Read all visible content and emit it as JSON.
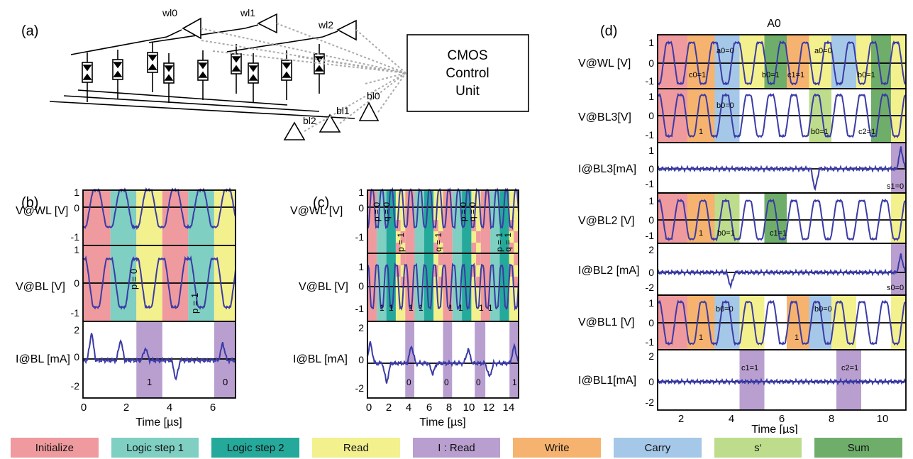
{
  "colors": {
    "initialize": "#ef9a9e",
    "logic1": "#7fcfc2",
    "logic2": "#24a99b",
    "read": "#f3f08e",
    "iread": "#b99fd0",
    "write": "#f6b36f",
    "carry": "#a5c8e8",
    "sprime": "#bddd8c",
    "sum": "#6fae6a",
    "trace": "#3b3ba6"
  },
  "panel_a": {
    "label": "(a)",
    "wordlines": [
      "wl0",
      "wl1",
      "wl2"
    ],
    "bitlines": [
      "bl0",
      "bl1",
      "bl2"
    ],
    "cmos": [
      "CMOS",
      "Control",
      "Unit"
    ]
  },
  "panel_b": {
    "label": "(b)",
    "ylabels": [
      "V@WL [V]",
      "V@BL [V]",
      "I@BL [mA]"
    ],
    "annotations": [
      "p = 0",
      "p = 1",
      "1",
      "0"
    ],
    "xlabel": "Time [µs]",
    "xticks": [
      "0",
      "2",
      "4",
      "6"
    ]
  },
  "panel_c": {
    "label": "(c)",
    "ylabels": [
      "V@WL [V]",
      "V@BL [V]",
      "I@BL [mA]"
    ],
    "annotations": [
      "p = 0",
      "q = 0",
      "p = 0",
      "q = 0",
      "p = 1",
      "q = 1",
      "p = 1",
      "q = 1",
      "1",
      "1",
      "1",
      "1",
      "1",
      "1",
      "1",
      "1",
      "0",
      "0",
      "0",
      "1"
    ],
    "xlabel": "Time [µs]",
    "xticks": [
      "0",
      "2",
      "4",
      "6",
      "8",
      "10",
      "12",
      "14"
    ]
  },
  "panel_d": {
    "label": "(d)",
    "title": "A0",
    "ylabels": [
      "V@WL [V]",
      "V@BL3[V]",
      "I@BL3[mA]",
      "V@BL2 [V]",
      "I@BL2 [mA]",
      "V@BL1 [V]",
      "I@BL1[mA]"
    ],
    "annotations": [
      "a0=0",
      "a0=0",
      "c0=1",
      "b0=1",
      "c1=1",
      "b0=1",
      "b0=0",
      "1",
      "b0=1",
      "c2=1",
      "s1=0",
      "1",
      "b0=1",
      "c1=1",
      "s0=0",
      "b0=0",
      "b0=0",
      "1",
      "1",
      "c1=1",
      "c2=1"
    ],
    "xlabel": "Time [µs]",
    "xticks": [
      "2",
      "4",
      "6",
      "8",
      "10"
    ]
  },
  "legend": [
    {
      "label": "Initialize",
      "color": "#ef9a9e"
    },
    {
      "label": "Logic step 1",
      "color": "#7fcfc2"
    },
    {
      "label": "Logic step 2",
      "color": "#24a99b"
    },
    {
      "label": "Read",
      "color": "#f3f08e"
    },
    {
      "label": "I : Read",
      "color": "#b99fd0"
    },
    {
      "label": "Write",
      "color": "#f6b36f"
    },
    {
      "label": "Carry",
      "color": "#a5c8e8"
    },
    {
      "label": "s‘",
      "color": "#bddd8c"
    },
    {
      "label": "Sum",
      "color": "#6fae6a"
    }
  ]
}
